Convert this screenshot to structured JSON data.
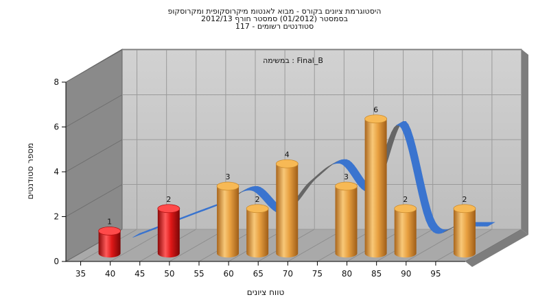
{
  "chart_data": {
    "type": "bar",
    "title_lines": [
      "היסטוגרמת ציונים בקורס - מבוא לאנטומ מיקרוסקופית ומקרוסקופ",
      "בסמסטר  (01/2012)  סמסטר חורף 2012/13",
      "סטודנטים רשומים - 117"
    ],
    "annotation": "במשימה : Final_B",
    "xlabel": "טווח ציונים",
    "ylabel": "מספר סטודנטים",
    "x_ticks": [
      "35",
      "40",
      "45",
      "50",
      "55",
      "60",
      "65",
      "70",
      "75",
      "80",
      "85",
      "90",
      "95"
    ],
    "y_ticks": [
      "0",
      "2",
      "4",
      "6",
      "8"
    ],
    "ylim": [
      0,
      8
    ],
    "bars": [
      {
        "x": 35,
        "value": 1,
        "label": "1",
        "color": "red"
      },
      {
        "x": 45,
        "value": 2,
        "label": "2",
        "color": "red"
      },
      {
        "x": 55,
        "value": 3,
        "label": "3",
        "color": "orange"
      },
      {
        "x": 60,
        "value": 2,
        "label": "2",
        "color": "orange"
      },
      {
        "x": 65,
        "value": 4,
        "label": "4",
        "color": "orange"
      },
      {
        "x": 75,
        "value": 3,
        "label": "3",
        "color": "orange"
      },
      {
        "x": 80,
        "value": 6,
        "label": "6",
        "color": "orange"
      },
      {
        "x": 85,
        "value": 2,
        "label": "2",
        "color": "orange"
      },
      {
        "x": 95,
        "value": 2,
        "label": "2",
        "color": "orange"
      }
    ],
    "curve": {
      "type": "ribbon",
      "x": [
        40,
        45,
        50,
        55,
        60,
        65,
        70,
        75,
        80,
        85,
        90,
        95,
        100
      ],
      "y": [
        0.5,
        1,
        1.5,
        2,
        2.6,
        1.6,
        3,
        3.8,
        2.6,
        5.5,
        1,
        1,
        1
      ]
    },
    "colors": {
      "red": "#e01818",
      "orange": "#e8a040",
      "ribbon_front": "#3a74cf",
      "ribbon_back": "#666666",
      "back_wall": "#c7c7c7",
      "left_wall": "#8a8a8a",
      "floor": "#a9a9a9"
    },
    "grid": true
  }
}
